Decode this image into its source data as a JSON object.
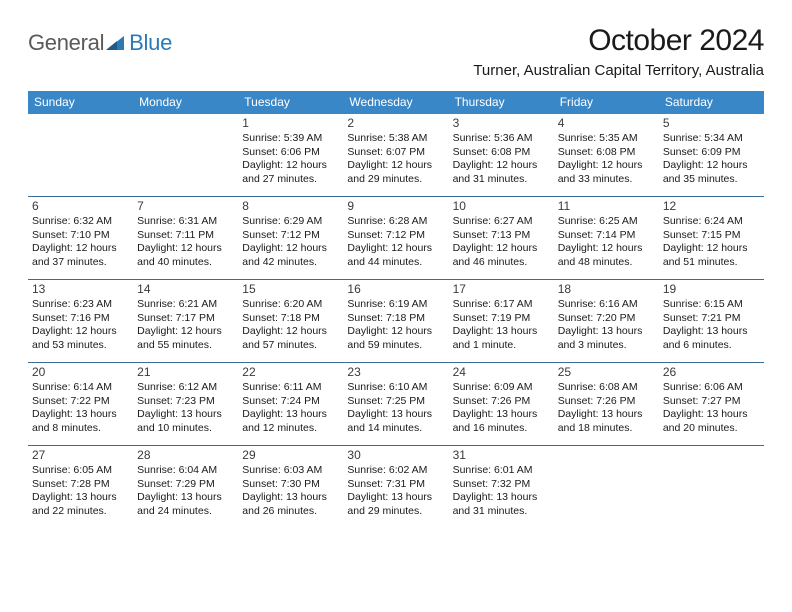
{
  "logo": {
    "word1": "General",
    "word2": "Blue"
  },
  "header": {
    "month_title": "October 2024",
    "location": "Turner, Australian Capital Territory, Australia"
  },
  "colors": {
    "header_bg": "#3a87c7",
    "header_text": "#ffffff",
    "week_border": "#3a6a95",
    "body_text": "#1a1a1a",
    "page_bg": "#ffffff"
  },
  "day_headers": [
    "Sunday",
    "Monday",
    "Tuesday",
    "Wednesday",
    "Thursday",
    "Friday",
    "Saturday"
  ],
  "weeks": [
    [
      {
        "day": "",
        "sunrise": "",
        "sunset": "",
        "daylight1": "",
        "daylight2": ""
      },
      {
        "day": "",
        "sunrise": "",
        "sunset": "",
        "daylight1": "",
        "daylight2": ""
      },
      {
        "day": "1",
        "sunrise": "Sunrise: 5:39 AM",
        "sunset": "Sunset: 6:06 PM",
        "daylight1": "Daylight: 12 hours",
        "daylight2": "and 27 minutes."
      },
      {
        "day": "2",
        "sunrise": "Sunrise: 5:38 AM",
        "sunset": "Sunset: 6:07 PM",
        "daylight1": "Daylight: 12 hours",
        "daylight2": "and 29 minutes."
      },
      {
        "day": "3",
        "sunrise": "Sunrise: 5:36 AM",
        "sunset": "Sunset: 6:08 PM",
        "daylight1": "Daylight: 12 hours",
        "daylight2": "and 31 minutes."
      },
      {
        "day": "4",
        "sunrise": "Sunrise: 5:35 AM",
        "sunset": "Sunset: 6:08 PM",
        "daylight1": "Daylight: 12 hours",
        "daylight2": "and 33 minutes."
      },
      {
        "day": "5",
        "sunrise": "Sunrise: 5:34 AM",
        "sunset": "Sunset: 6:09 PM",
        "daylight1": "Daylight: 12 hours",
        "daylight2": "and 35 minutes."
      }
    ],
    [
      {
        "day": "6",
        "sunrise": "Sunrise: 6:32 AM",
        "sunset": "Sunset: 7:10 PM",
        "daylight1": "Daylight: 12 hours",
        "daylight2": "and 37 minutes."
      },
      {
        "day": "7",
        "sunrise": "Sunrise: 6:31 AM",
        "sunset": "Sunset: 7:11 PM",
        "daylight1": "Daylight: 12 hours",
        "daylight2": "and 40 minutes."
      },
      {
        "day": "8",
        "sunrise": "Sunrise: 6:29 AM",
        "sunset": "Sunset: 7:12 PM",
        "daylight1": "Daylight: 12 hours",
        "daylight2": "and 42 minutes."
      },
      {
        "day": "9",
        "sunrise": "Sunrise: 6:28 AM",
        "sunset": "Sunset: 7:12 PM",
        "daylight1": "Daylight: 12 hours",
        "daylight2": "and 44 minutes."
      },
      {
        "day": "10",
        "sunrise": "Sunrise: 6:27 AM",
        "sunset": "Sunset: 7:13 PM",
        "daylight1": "Daylight: 12 hours",
        "daylight2": "and 46 minutes."
      },
      {
        "day": "11",
        "sunrise": "Sunrise: 6:25 AM",
        "sunset": "Sunset: 7:14 PM",
        "daylight1": "Daylight: 12 hours",
        "daylight2": "and 48 minutes."
      },
      {
        "day": "12",
        "sunrise": "Sunrise: 6:24 AM",
        "sunset": "Sunset: 7:15 PM",
        "daylight1": "Daylight: 12 hours",
        "daylight2": "and 51 minutes."
      }
    ],
    [
      {
        "day": "13",
        "sunrise": "Sunrise: 6:23 AM",
        "sunset": "Sunset: 7:16 PM",
        "daylight1": "Daylight: 12 hours",
        "daylight2": "and 53 minutes."
      },
      {
        "day": "14",
        "sunrise": "Sunrise: 6:21 AM",
        "sunset": "Sunset: 7:17 PM",
        "daylight1": "Daylight: 12 hours",
        "daylight2": "and 55 minutes."
      },
      {
        "day": "15",
        "sunrise": "Sunrise: 6:20 AM",
        "sunset": "Sunset: 7:18 PM",
        "daylight1": "Daylight: 12 hours",
        "daylight2": "and 57 minutes."
      },
      {
        "day": "16",
        "sunrise": "Sunrise: 6:19 AM",
        "sunset": "Sunset: 7:18 PM",
        "daylight1": "Daylight: 12 hours",
        "daylight2": "and 59 minutes."
      },
      {
        "day": "17",
        "sunrise": "Sunrise: 6:17 AM",
        "sunset": "Sunset: 7:19 PM",
        "daylight1": "Daylight: 13 hours",
        "daylight2": "and 1 minute."
      },
      {
        "day": "18",
        "sunrise": "Sunrise: 6:16 AM",
        "sunset": "Sunset: 7:20 PM",
        "daylight1": "Daylight: 13 hours",
        "daylight2": "and 3 minutes."
      },
      {
        "day": "19",
        "sunrise": "Sunrise: 6:15 AM",
        "sunset": "Sunset: 7:21 PM",
        "daylight1": "Daylight: 13 hours",
        "daylight2": "and 6 minutes."
      }
    ],
    [
      {
        "day": "20",
        "sunrise": "Sunrise: 6:14 AM",
        "sunset": "Sunset: 7:22 PM",
        "daylight1": "Daylight: 13 hours",
        "daylight2": "and 8 minutes."
      },
      {
        "day": "21",
        "sunrise": "Sunrise: 6:12 AM",
        "sunset": "Sunset: 7:23 PM",
        "daylight1": "Daylight: 13 hours",
        "daylight2": "and 10 minutes."
      },
      {
        "day": "22",
        "sunrise": "Sunrise: 6:11 AM",
        "sunset": "Sunset: 7:24 PM",
        "daylight1": "Daylight: 13 hours",
        "daylight2": "and 12 minutes."
      },
      {
        "day": "23",
        "sunrise": "Sunrise: 6:10 AM",
        "sunset": "Sunset: 7:25 PM",
        "daylight1": "Daylight: 13 hours",
        "daylight2": "and 14 minutes."
      },
      {
        "day": "24",
        "sunrise": "Sunrise: 6:09 AM",
        "sunset": "Sunset: 7:26 PM",
        "daylight1": "Daylight: 13 hours",
        "daylight2": "and 16 minutes."
      },
      {
        "day": "25",
        "sunrise": "Sunrise: 6:08 AM",
        "sunset": "Sunset: 7:26 PM",
        "daylight1": "Daylight: 13 hours",
        "daylight2": "and 18 minutes."
      },
      {
        "day": "26",
        "sunrise": "Sunrise: 6:06 AM",
        "sunset": "Sunset: 7:27 PM",
        "daylight1": "Daylight: 13 hours",
        "daylight2": "and 20 minutes."
      }
    ],
    [
      {
        "day": "27",
        "sunrise": "Sunrise: 6:05 AM",
        "sunset": "Sunset: 7:28 PM",
        "daylight1": "Daylight: 13 hours",
        "daylight2": "and 22 minutes."
      },
      {
        "day": "28",
        "sunrise": "Sunrise: 6:04 AM",
        "sunset": "Sunset: 7:29 PM",
        "daylight1": "Daylight: 13 hours",
        "daylight2": "and 24 minutes."
      },
      {
        "day": "29",
        "sunrise": "Sunrise: 6:03 AM",
        "sunset": "Sunset: 7:30 PM",
        "daylight1": "Daylight: 13 hours",
        "daylight2": "and 26 minutes."
      },
      {
        "day": "30",
        "sunrise": "Sunrise: 6:02 AM",
        "sunset": "Sunset: 7:31 PM",
        "daylight1": "Daylight: 13 hours",
        "daylight2": "and 29 minutes."
      },
      {
        "day": "31",
        "sunrise": "Sunrise: 6:01 AM",
        "sunset": "Sunset: 7:32 PM",
        "daylight1": "Daylight: 13 hours",
        "daylight2": "and 31 minutes."
      },
      {
        "day": "",
        "sunrise": "",
        "sunset": "",
        "daylight1": "",
        "daylight2": ""
      },
      {
        "day": "",
        "sunrise": "",
        "sunset": "",
        "daylight1": "",
        "daylight2": ""
      }
    ]
  ]
}
